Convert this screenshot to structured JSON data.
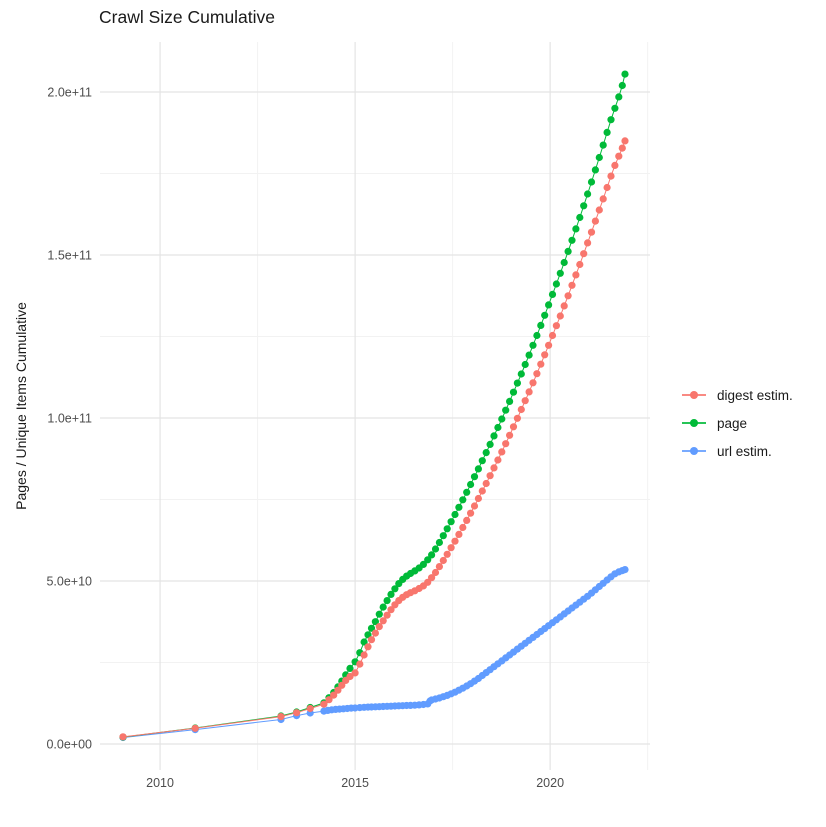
{
  "title": "Crawl Size Cumulative",
  "y_axis_label": "Pages / Unique Items Cumulative",
  "legend": {
    "position": "right",
    "items": [
      {
        "label": "digest estim.",
        "color": "#F8766D"
      },
      {
        "label": "page",
        "color": "#00BA38"
      },
      {
        "label": "url estim.",
        "color": "#619CFF"
      }
    ]
  },
  "chart_data": {
    "type": "scatter",
    "title": "Crawl Size Cumulative",
    "xlabel": "",
    "ylabel": "Pages / Unique Items Cumulative",
    "unit": "1e9 (values below are billions of pages / items)",
    "grid": true,
    "legend_position": "right",
    "xlim": [
      2008.46,
      2022.56
    ],
    "ylim_e9": [
      -7.98,
      215.34
    ],
    "x_ticks": [
      {
        "value": 2010,
        "label": "2010"
      },
      {
        "value": 2015,
        "label": "2015"
      },
      {
        "value": 2020,
        "label": "2020"
      }
    ],
    "x_minor": [
      2012.5,
      2017.5,
      2022.5
    ],
    "y_ticks": [
      {
        "value": 0,
        "label": "0.0e+00"
      },
      {
        "value": 50,
        "label": "5.0e+10"
      },
      {
        "value": 100,
        "label": "1.0e+11"
      },
      {
        "value": 150,
        "label": "1.5e+11"
      },
      {
        "value": 200,
        "label": "2.0e+11"
      }
    ],
    "y_minor": [
      25,
      75,
      125,
      175
    ],
    "series": [
      {
        "name": "digest estim.",
        "color": "#F8766D",
        "points": [
          [
            2009.05,
            2.2
          ],
          [
            2010.9,
            4.8
          ],
          [
            2013.1,
            8.4
          ],
          [
            2013.5,
            9.6
          ],
          [
            2013.85,
            10.9
          ],
          [
            2014.2,
            12.2
          ],
          [
            2014.33,
            13.6
          ],
          [
            2014.45,
            15.0
          ],
          [
            2014.56,
            16.5
          ],
          [
            2014.66,
            18.0
          ],
          [
            2014.76,
            19.5
          ],
          [
            2014.87,
            20.7
          ],
          [
            2015.0,
            21.8
          ],
          [
            2015.12,
            24.5
          ],
          [
            2015.23,
            27.3
          ],
          [
            2015.33,
            29.8
          ],
          [
            2015.42,
            32.0
          ],
          [
            2015.52,
            34.0
          ],
          [
            2015.62,
            36.0
          ],
          [
            2015.72,
            37.8
          ],
          [
            2015.82,
            39.5
          ],
          [
            2015.92,
            41.2
          ],
          [
            2016.02,
            42.7
          ],
          [
            2016.12,
            44.0
          ],
          [
            2016.22,
            45.0
          ],
          [
            2016.32,
            45.8
          ],
          [
            2016.42,
            46.4
          ],
          [
            2016.53,
            47.0
          ],
          [
            2016.64,
            47.7
          ],
          [
            2016.75,
            48.5
          ],
          [
            2016.86,
            49.6
          ],
          [
            2016.96,
            51.0
          ],
          [
            2017.06,
            52.6
          ],
          [
            2017.16,
            54.4
          ],
          [
            2017.26,
            56.3
          ],
          [
            2017.36,
            58.2
          ],
          [
            2017.46,
            60.2
          ],
          [
            2017.56,
            62.2
          ],
          [
            2017.66,
            64.3
          ],
          [
            2017.76,
            66.4
          ],
          [
            2017.86,
            68.6
          ],
          [
            2017.96,
            70.8
          ],
          [
            2018.06,
            73.0
          ],
          [
            2018.16,
            75.3
          ],
          [
            2018.26,
            77.6
          ],
          [
            2018.36,
            79.9
          ],
          [
            2018.46,
            82.3
          ],
          [
            2018.56,
            84.7
          ],
          [
            2018.66,
            87.1
          ],
          [
            2018.76,
            89.6
          ],
          [
            2018.86,
            92.1
          ],
          [
            2018.96,
            94.7
          ],
          [
            2019.06,
            97.3
          ],
          [
            2019.16,
            99.9
          ],
          [
            2019.26,
            102.6
          ],
          [
            2019.36,
            105.3
          ],
          [
            2019.46,
            108.0
          ],
          [
            2019.56,
            110.8
          ],
          [
            2019.66,
            113.6
          ],
          [
            2019.76,
            116.5
          ],
          [
            2019.86,
            119.4
          ],
          [
            2019.96,
            122.3
          ],
          [
            2020.06,
            125.3
          ],
          [
            2020.16,
            128.3
          ],
          [
            2020.26,
            131.3
          ],
          [
            2020.36,
            134.4
          ],
          [
            2020.46,
            137.5
          ],
          [
            2020.56,
            140.7
          ],
          [
            2020.66,
            143.9
          ],
          [
            2020.76,
            147.1
          ],
          [
            2020.86,
            150.4
          ],
          [
            2020.96,
            153.7
          ],
          [
            2021.06,
            157.0
          ],
          [
            2021.16,
            160.4
          ],
          [
            2021.26,
            163.8
          ],
          [
            2021.36,
            167.2
          ],
          [
            2021.46,
            170.7
          ],
          [
            2021.56,
            174.2
          ],
          [
            2021.66,
            177.5
          ],
          [
            2021.76,
            180.3
          ],
          [
            2021.85,
            182.8
          ],
          [
            2021.92,
            185.0
          ]
        ]
      },
      {
        "name": "page",
        "color": "#00BA38",
        "points": [
          [
            2009.05,
            2.1
          ],
          [
            2010.9,
            4.9
          ],
          [
            2013.1,
            8.6
          ],
          [
            2013.5,
            9.8
          ],
          [
            2013.85,
            11.2
          ],
          [
            2014.2,
            12.6
          ],
          [
            2014.33,
            14.2
          ],
          [
            2014.45,
            15.8
          ],
          [
            2014.56,
            17.5
          ],
          [
            2014.66,
            19.3
          ],
          [
            2014.76,
            21.2
          ],
          [
            2014.87,
            23.2
          ],
          [
            2015.0,
            25.2
          ],
          [
            2015.12,
            28.0
          ],
          [
            2015.23,
            31.3
          ],
          [
            2015.33,
            33.5
          ],
          [
            2015.42,
            35.5
          ],
          [
            2015.52,
            37.5
          ],
          [
            2015.62,
            39.8
          ],
          [
            2015.72,
            42.0
          ],
          [
            2015.82,
            44.0
          ],
          [
            2015.92,
            45.9
          ],
          [
            2016.02,
            47.6
          ],
          [
            2016.12,
            49.2
          ],
          [
            2016.22,
            50.5
          ],
          [
            2016.32,
            51.5
          ],
          [
            2016.42,
            52.3
          ],
          [
            2016.53,
            53.1
          ],
          [
            2016.64,
            54.0
          ],
          [
            2016.75,
            55.1
          ],
          [
            2016.86,
            56.5
          ],
          [
            2016.96,
            58.0
          ],
          [
            2017.06,
            59.8
          ],
          [
            2017.16,
            61.8
          ],
          [
            2017.26,
            63.9
          ],
          [
            2017.36,
            66.0
          ],
          [
            2017.46,
            68.2
          ],
          [
            2017.56,
            70.4
          ],
          [
            2017.66,
            72.6
          ],
          [
            2017.76,
            74.9
          ],
          [
            2017.86,
            77.2
          ],
          [
            2017.96,
            79.6
          ],
          [
            2018.06,
            82.0
          ],
          [
            2018.16,
            84.4
          ],
          [
            2018.26,
            86.9
          ],
          [
            2018.36,
            89.4
          ],
          [
            2018.46,
            91.9
          ],
          [
            2018.56,
            94.5
          ],
          [
            2018.66,
            97.1
          ],
          [
            2018.76,
            99.7
          ],
          [
            2018.86,
            102.4
          ],
          [
            2018.96,
            105.1
          ],
          [
            2019.06,
            107.9
          ],
          [
            2019.16,
            110.7
          ],
          [
            2019.26,
            113.5
          ],
          [
            2019.36,
            116.4
          ],
          [
            2019.46,
            119.3
          ],
          [
            2019.56,
            122.3
          ],
          [
            2019.66,
            125.3
          ],
          [
            2019.76,
            128.4
          ],
          [
            2019.86,
            131.5
          ],
          [
            2019.96,
            134.7
          ],
          [
            2020.06,
            137.9
          ],
          [
            2020.16,
            141.1
          ],
          [
            2020.26,
            144.4
          ],
          [
            2020.36,
            147.7
          ],
          [
            2020.46,
            151.1
          ],
          [
            2020.56,
            154.5
          ],
          [
            2020.66,
            158.0
          ],
          [
            2020.76,
            161.5
          ],
          [
            2020.86,
            165.1
          ],
          [
            2020.96,
            168.7
          ],
          [
            2021.06,
            172.4
          ],
          [
            2021.16,
            176.1
          ],
          [
            2021.26,
            179.9
          ],
          [
            2021.36,
            183.7
          ],
          [
            2021.46,
            187.6
          ],
          [
            2021.56,
            191.5
          ],
          [
            2021.66,
            195.0
          ],
          [
            2021.76,
            198.5
          ],
          [
            2021.85,
            202.0
          ],
          [
            2021.92,
            205.5
          ]
        ]
      },
      {
        "name": "url estim.",
        "color": "#619CFF",
        "points": [
          [
            2009.05,
            2.0
          ],
          [
            2010.9,
            4.4
          ],
          [
            2013.1,
            7.5
          ],
          [
            2013.5,
            8.7
          ],
          [
            2013.85,
            9.5
          ],
          [
            2014.2,
            10.1
          ],
          [
            2014.3,
            10.3
          ],
          [
            2014.4,
            10.5
          ],
          [
            2014.5,
            10.6
          ],
          [
            2014.6,
            10.7
          ],
          [
            2014.7,
            10.8
          ],
          [
            2014.8,
            10.9
          ],
          [
            2014.9,
            11.0
          ],
          [
            2015.0,
            11.05
          ],
          [
            2015.12,
            11.15
          ],
          [
            2015.23,
            11.25
          ],
          [
            2015.33,
            11.3
          ],
          [
            2015.42,
            11.35
          ],
          [
            2015.52,
            11.4
          ],
          [
            2015.62,
            11.45
          ],
          [
            2015.72,
            11.5
          ],
          [
            2015.82,
            11.55
          ],
          [
            2015.92,
            11.6
          ],
          [
            2016.02,
            11.65
          ],
          [
            2016.12,
            11.7
          ],
          [
            2016.22,
            11.75
          ],
          [
            2016.32,
            11.8
          ],
          [
            2016.42,
            11.85
          ],
          [
            2016.53,
            11.9
          ],
          [
            2016.64,
            12.0
          ],
          [
            2016.75,
            12.1
          ],
          [
            2016.86,
            12.3
          ],
          [
            2016.92,
            13.2
          ],
          [
            2016.96,
            13.5
          ],
          [
            2017.06,
            13.8
          ],
          [
            2017.16,
            14.1
          ],
          [
            2017.26,
            14.5
          ],
          [
            2017.36,
            14.9
          ],
          [
            2017.46,
            15.4
          ],
          [
            2017.56,
            15.9
          ],
          [
            2017.66,
            16.5
          ],
          [
            2017.76,
            17.1
          ],
          [
            2017.86,
            17.8
          ],
          [
            2017.96,
            18.5
          ],
          [
            2018.06,
            19.3
          ],
          [
            2018.16,
            20.1
          ],
          [
            2018.26,
            21.0
          ],
          [
            2018.36,
            21.9
          ],
          [
            2018.46,
            22.8
          ],
          [
            2018.56,
            23.7
          ],
          [
            2018.66,
            24.6
          ],
          [
            2018.76,
            25.5
          ],
          [
            2018.86,
            26.4
          ],
          [
            2018.96,
            27.3
          ],
          [
            2019.06,
            28.2
          ],
          [
            2019.16,
            29.1
          ],
          [
            2019.26,
            30.0
          ],
          [
            2019.36,
            30.9
          ],
          [
            2019.46,
            31.8
          ],
          [
            2019.56,
            32.7
          ],
          [
            2019.66,
            33.6
          ],
          [
            2019.76,
            34.5
          ],
          [
            2019.86,
            35.4
          ],
          [
            2019.96,
            36.3
          ],
          [
            2020.06,
            37.2
          ],
          [
            2020.16,
            38.1
          ],
          [
            2020.26,
            39.0
          ],
          [
            2020.36,
            39.9
          ],
          [
            2020.46,
            40.8
          ],
          [
            2020.56,
            41.7
          ],
          [
            2020.66,
            42.6
          ],
          [
            2020.76,
            43.5
          ],
          [
            2020.86,
            44.4
          ],
          [
            2020.96,
            45.3
          ],
          [
            2021.06,
            46.3
          ],
          [
            2021.16,
            47.3
          ],
          [
            2021.26,
            48.3
          ],
          [
            2021.36,
            49.3
          ],
          [
            2021.46,
            50.3
          ],
          [
            2021.56,
            51.3
          ],
          [
            2021.66,
            52.2
          ],
          [
            2021.76,
            52.8
          ],
          [
            2021.85,
            53.2
          ],
          [
            2021.92,
            53.5
          ]
        ]
      }
    ]
  }
}
